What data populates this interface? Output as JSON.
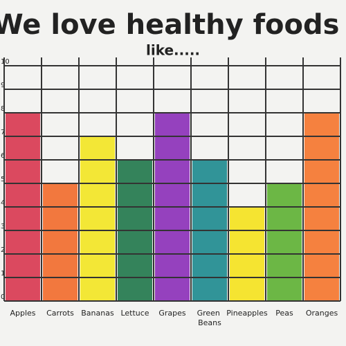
{
  "chart_data": {
    "type": "bar",
    "title": "We love healthy foods",
    "subtitle": "like.....",
    "categories": [
      "Apples",
      "Carrots",
      "Bananas",
      "Lettuce",
      "Grapes",
      "Green Beans",
      "Pineapples",
      "Peas",
      "Oranges"
    ],
    "values": [
      8,
      5,
      7,
      6,
      8,
      6,
      4,
      5,
      8
    ],
    "colors": [
      "#d8364f",
      "#f26a2a",
      "#f3e521",
      "#1f774a",
      "#8b2db8",
      "#1c8a8e",
      "#f5e21c",
      "#5db032",
      "#f5742b"
    ],
    "ylim": [
      0,
      10
    ],
    "yticks": [
      0,
      1,
      2,
      3,
      4,
      5,
      6,
      7,
      8,
      9,
      10
    ],
    "grid": true
  }
}
